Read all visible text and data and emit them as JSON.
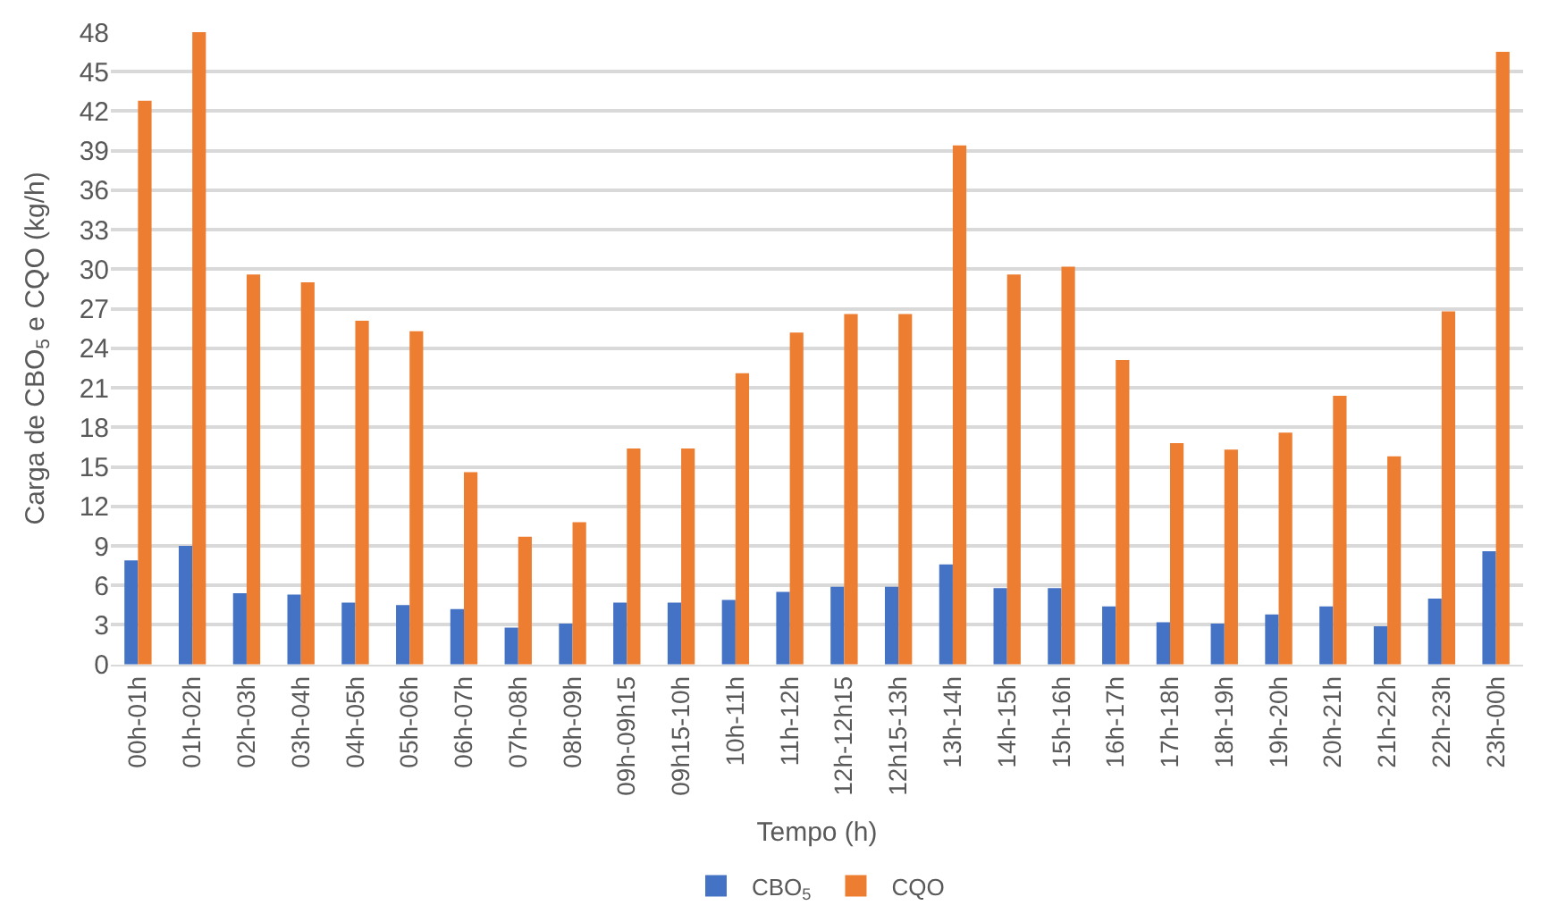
{
  "chart_data": {
    "type": "bar",
    "xlabel": "Tempo (h)",
    "ylabel": "Carga de CBO$_{5}$ e CQO (kg/h)",
    "categories": [
      "00h-01h",
      "01h-02h",
      "02h-03h",
      "03h-04h",
      "04h-05h",
      "05h-06h",
      "06h-07h",
      "07h-08h",
      "08h-09h",
      "09h-09h15",
      "09h15-10h",
      "10h-11h",
      "11h-12h",
      "12h-12h15",
      "12h15-13h",
      "13h-14h",
      "14h-15h",
      "15h-16h",
      "16h-17h",
      "17h-18h",
      "18h-19h",
      "19h-20h",
      "20h-21h",
      "21h-22h",
      "22h-23h",
      "23h-00h"
    ],
    "series": [
      {
        "name": "CBO$_{5}$",
        "color": "#4472c4",
        "values": [
          7.9,
          9.0,
          5.4,
          5.3,
          4.7,
          4.5,
          4.2,
          2.8,
          3.1,
          4.7,
          4.7,
          4.9,
          5.5,
          5.9,
          5.9,
          7.6,
          5.8,
          5.8,
          4.4,
          3.2,
          3.1,
          3.8,
          4.4,
          2.9,
          5.0,
          8.6
        ]
      },
      {
        "name": "CQO",
        "color": "#ed7d31",
        "values": [
          42.8,
          48.0,
          29.6,
          29.0,
          26.1,
          25.3,
          14.6,
          9.7,
          10.8,
          16.4,
          16.4,
          22.1,
          25.2,
          26.6,
          26.6,
          39.4,
          29.6,
          30.2,
          23.1,
          16.8,
          16.3,
          17.6,
          20.4,
          15.8,
          26.8,
          46.5
        ]
      }
    ],
    "ylim": [
      0,
      48
    ],
    "yticks": [
      0,
      3,
      6,
      9,
      12,
      15,
      18,
      21,
      24,
      27,
      30,
      33,
      36,
      39,
      42,
      45,
      48
    ],
    "grid": "y",
    "legend": "bottom"
  }
}
